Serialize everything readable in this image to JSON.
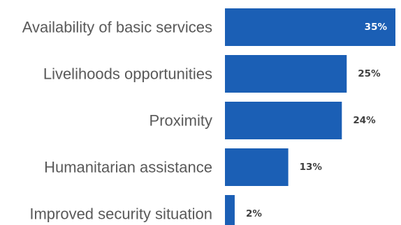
{
  "colors": {
    "bar": "#1b5fb5",
    "label_text": "#595959",
    "inside_value_text": "#ffffff",
    "outside_value_text": "#404040"
  },
  "chart_data": {
    "type": "bar",
    "orientation": "horizontal",
    "categories": [
      "Availability of basic services",
      "Livelihoods opportunities",
      "Proximity",
      "Humanitarian assistance",
      "Improved security situation"
    ],
    "values": [
      35,
      25,
      24,
      13,
      2
    ],
    "value_labels": [
      "35%",
      "25%",
      "24%",
      "13%",
      "2%"
    ],
    "title": "",
    "xlabel": "",
    "ylabel": "",
    "xlim": [
      0,
      35
    ],
    "grid": false,
    "legend": "none"
  }
}
